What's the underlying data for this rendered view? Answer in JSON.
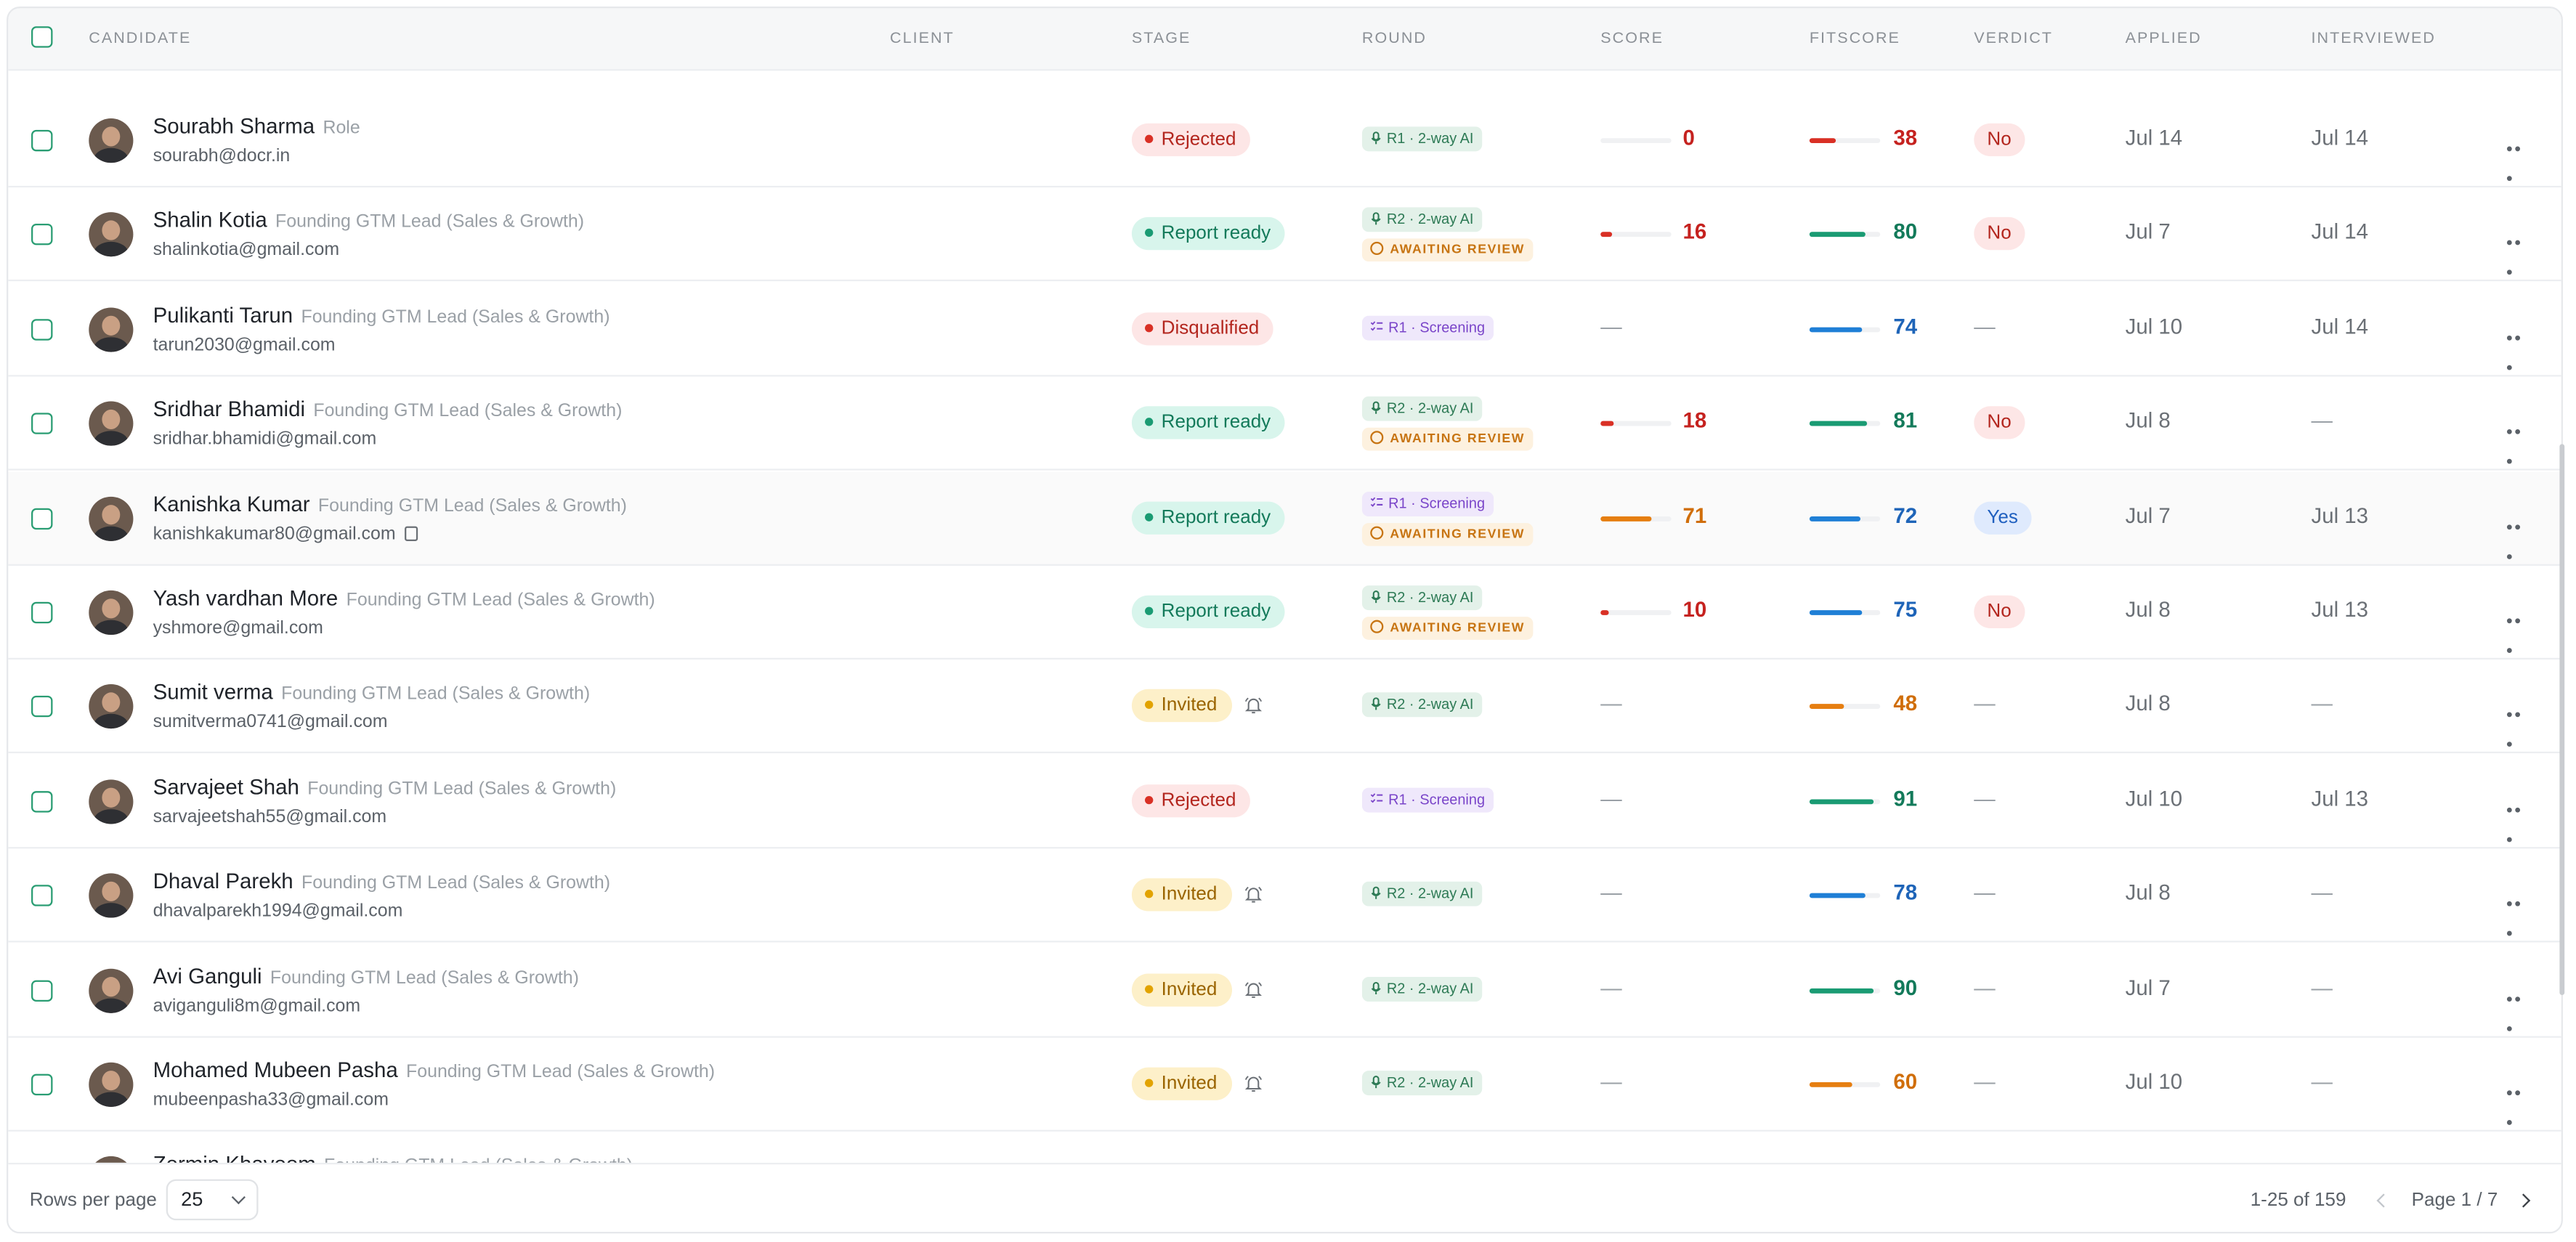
{
  "header": {
    "candidate": "CANDIDATE",
    "client": "CLIENT",
    "stage": "STAGE",
    "round": "ROUND",
    "score": "SCORE",
    "fitscore": "FITSCORE",
    "verdict": "VERDICT",
    "applied": "APPLIED",
    "interviewed": "INTERVIEWED"
  },
  "colors": {
    "red": "#d93025",
    "green": "#1a9b73",
    "blue": "#1f7fd6",
    "orange": "#e67e10",
    "accent": "#2a9d73"
  },
  "rows": [
    {
      "name": "Sourabh Sharma",
      "role": "Role",
      "email": "sourabh@docr.in",
      "stage": "Rejected",
      "stage_type": "rejected",
      "round": "R1 · 2-way AI",
      "round_type": "2way",
      "awaiting": "",
      "score": "0",
      "score_pct": 0,
      "score_color": "red",
      "fit": "38",
      "fit_pct": 38,
      "fit_color": "red",
      "verdict": "No",
      "applied": "Jul 14",
      "interviewed": "Jul 14"
    },
    {
      "name": "Shalin Kotia",
      "role": "Founding GTM Lead (Sales & Growth)",
      "email": "shalinkotia@gmail.com",
      "stage": "Report ready",
      "stage_type": "report",
      "round": "R2 · 2-way AI",
      "round_type": "2way",
      "awaiting": "AWAITING REVIEW",
      "score": "16",
      "score_pct": 16,
      "score_color": "red",
      "fit": "80",
      "fit_pct": 80,
      "fit_color": "green",
      "verdict": "No",
      "applied": "Jul 7",
      "interviewed": "Jul 14"
    },
    {
      "name": "Pulikanti Tarun",
      "role": "Founding GTM Lead (Sales & Growth)",
      "email": "tarun2030@gmail.com",
      "stage": "Disqualified",
      "stage_type": "disq",
      "round": "R1 · Screening",
      "round_type": "screen",
      "awaiting": "",
      "score": "—",
      "score_pct": null,
      "score_color": "",
      "fit": "74",
      "fit_pct": 74,
      "fit_color": "blue",
      "verdict": "—",
      "applied": "Jul 10",
      "interviewed": "Jul 14"
    },
    {
      "name": "Sridhar Bhamidi",
      "role": "Founding GTM Lead (Sales & Growth)",
      "email": "sridhar.bhamidi@gmail.com",
      "stage": "Report ready",
      "stage_type": "report",
      "round": "R2 · 2-way AI",
      "round_type": "2way",
      "awaiting": "AWAITING REVIEW",
      "score": "18",
      "score_pct": 18,
      "score_color": "red",
      "fit": "81",
      "fit_pct": 81,
      "fit_color": "green",
      "verdict": "No",
      "applied": "Jul 8",
      "interviewed": "—"
    },
    {
      "name": "Kanishka Kumar",
      "role": "Founding GTM Lead (Sales & Growth)",
      "email": "kanishkakumar80@gmail.com",
      "stage": "Report ready",
      "stage_type": "report",
      "round": "R1 · Screening",
      "round_type": "screen",
      "awaiting": "AWAITING REVIEW",
      "score": "71",
      "score_pct": 71,
      "score_color": "orange",
      "fit": "72",
      "fit_pct": 72,
      "fit_color": "blue",
      "verdict": "Yes",
      "applied": "Jul 7",
      "interviewed": "Jul 13",
      "highlight": true
    },
    {
      "name": "Yash vardhan More",
      "role": "Founding GTM Lead (Sales & Growth)",
      "email": "yshmore@gmail.com",
      "stage": "Report ready",
      "stage_type": "report",
      "round": "R2 · 2-way AI",
      "round_type": "2way",
      "awaiting": "AWAITING REVIEW",
      "score": "10",
      "score_pct": 10,
      "score_color": "red",
      "fit": "75",
      "fit_pct": 75,
      "fit_color": "blue",
      "verdict": "No",
      "applied": "Jul 8",
      "interviewed": "Jul 13"
    },
    {
      "name": "Sumit verma",
      "role": "Founding GTM Lead (Sales & Growth)",
      "email": "sumitverma0741@gmail.com",
      "stage": "Invited",
      "stage_type": "invited",
      "round": "R2 · 2-way AI",
      "round_type": "2way",
      "awaiting": "",
      "score": "—",
      "score_pct": null,
      "score_color": "",
      "fit": "48",
      "fit_pct": 48,
      "fit_color": "orange",
      "verdict": "—",
      "applied": "Jul 8",
      "interviewed": "—"
    },
    {
      "name": "Sarvajeet Shah",
      "role": "Founding GTM Lead (Sales & Growth)",
      "email": "sarvajeetshah55@gmail.com",
      "stage": "Rejected",
      "stage_type": "rejected",
      "round": "R1 · Screening",
      "round_type": "screen",
      "awaiting": "",
      "score": "—",
      "score_pct": null,
      "score_color": "",
      "fit": "91",
      "fit_pct": 91,
      "fit_color": "green",
      "verdict": "—",
      "applied": "Jul 10",
      "interviewed": "Jul 13"
    },
    {
      "name": "Dhaval Parekh",
      "role": "Founding GTM Lead (Sales & Growth)",
      "email": "dhavalparekh1994@gmail.com",
      "stage": "Invited",
      "stage_type": "invited",
      "round": "R2 · 2-way AI",
      "round_type": "2way",
      "awaiting": "",
      "score": "—",
      "score_pct": null,
      "score_color": "",
      "fit": "78",
      "fit_pct": 78,
      "fit_color": "blue",
      "verdict": "—",
      "applied": "Jul 8",
      "interviewed": "—"
    },
    {
      "name": "Avi Ganguli",
      "role": "Founding GTM Lead (Sales & Growth)",
      "email": "aviganguli8m@gmail.com",
      "stage": "Invited",
      "stage_type": "invited",
      "round": "R2 · 2-way AI",
      "round_type": "2way",
      "awaiting": "",
      "score": "—",
      "score_pct": null,
      "score_color": "",
      "fit": "90",
      "fit_pct": 90,
      "fit_color": "green",
      "verdict": "—",
      "applied": "Jul 7",
      "interviewed": "—"
    },
    {
      "name": "Mohamed Mubeen Pasha",
      "role": "Founding GTM Lead (Sales & Growth)",
      "email": "mubeenpasha33@gmail.com",
      "stage": "Invited",
      "stage_type": "invited",
      "round": "R2 · 2-way AI",
      "round_type": "2way",
      "awaiting": "",
      "score": "—",
      "score_pct": null,
      "score_color": "",
      "fit": "60",
      "fit_pct": 60,
      "fit_color": "orange",
      "verdict": "—",
      "applied": "Jul 10",
      "interviewed": "—"
    },
    {
      "name": "Zermin Khayoom",
      "role": "Founding GTM Lead (Sales & Growth)",
      "email": "",
      "stage": "",
      "stage_type": "invited",
      "round": "",
      "round_type": "2way",
      "awaiting": "",
      "score": "",
      "score_pct": null,
      "score_color": "",
      "fit": "",
      "fit_pct": null,
      "fit_color": "",
      "verdict": "",
      "applied": "",
      "interviewed": "",
      "partial": true
    }
  ],
  "footer": {
    "rows_per_page_label": "Rows per page",
    "rows_per_page_value": "25",
    "range": "1-25 of 159",
    "page": "Page 1 / 7"
  },
  "icons": {
    "checkbox": "checkbox-icon",
    "bell": "bell-icon",
    "mic": "mic-icon",
    "list": "list-icon",
    "clock": "clock-icon",
    "copy": "copy-icon",
    "more": "more-icon",
    "chevron": "chevron-down-icon"
  }
}
